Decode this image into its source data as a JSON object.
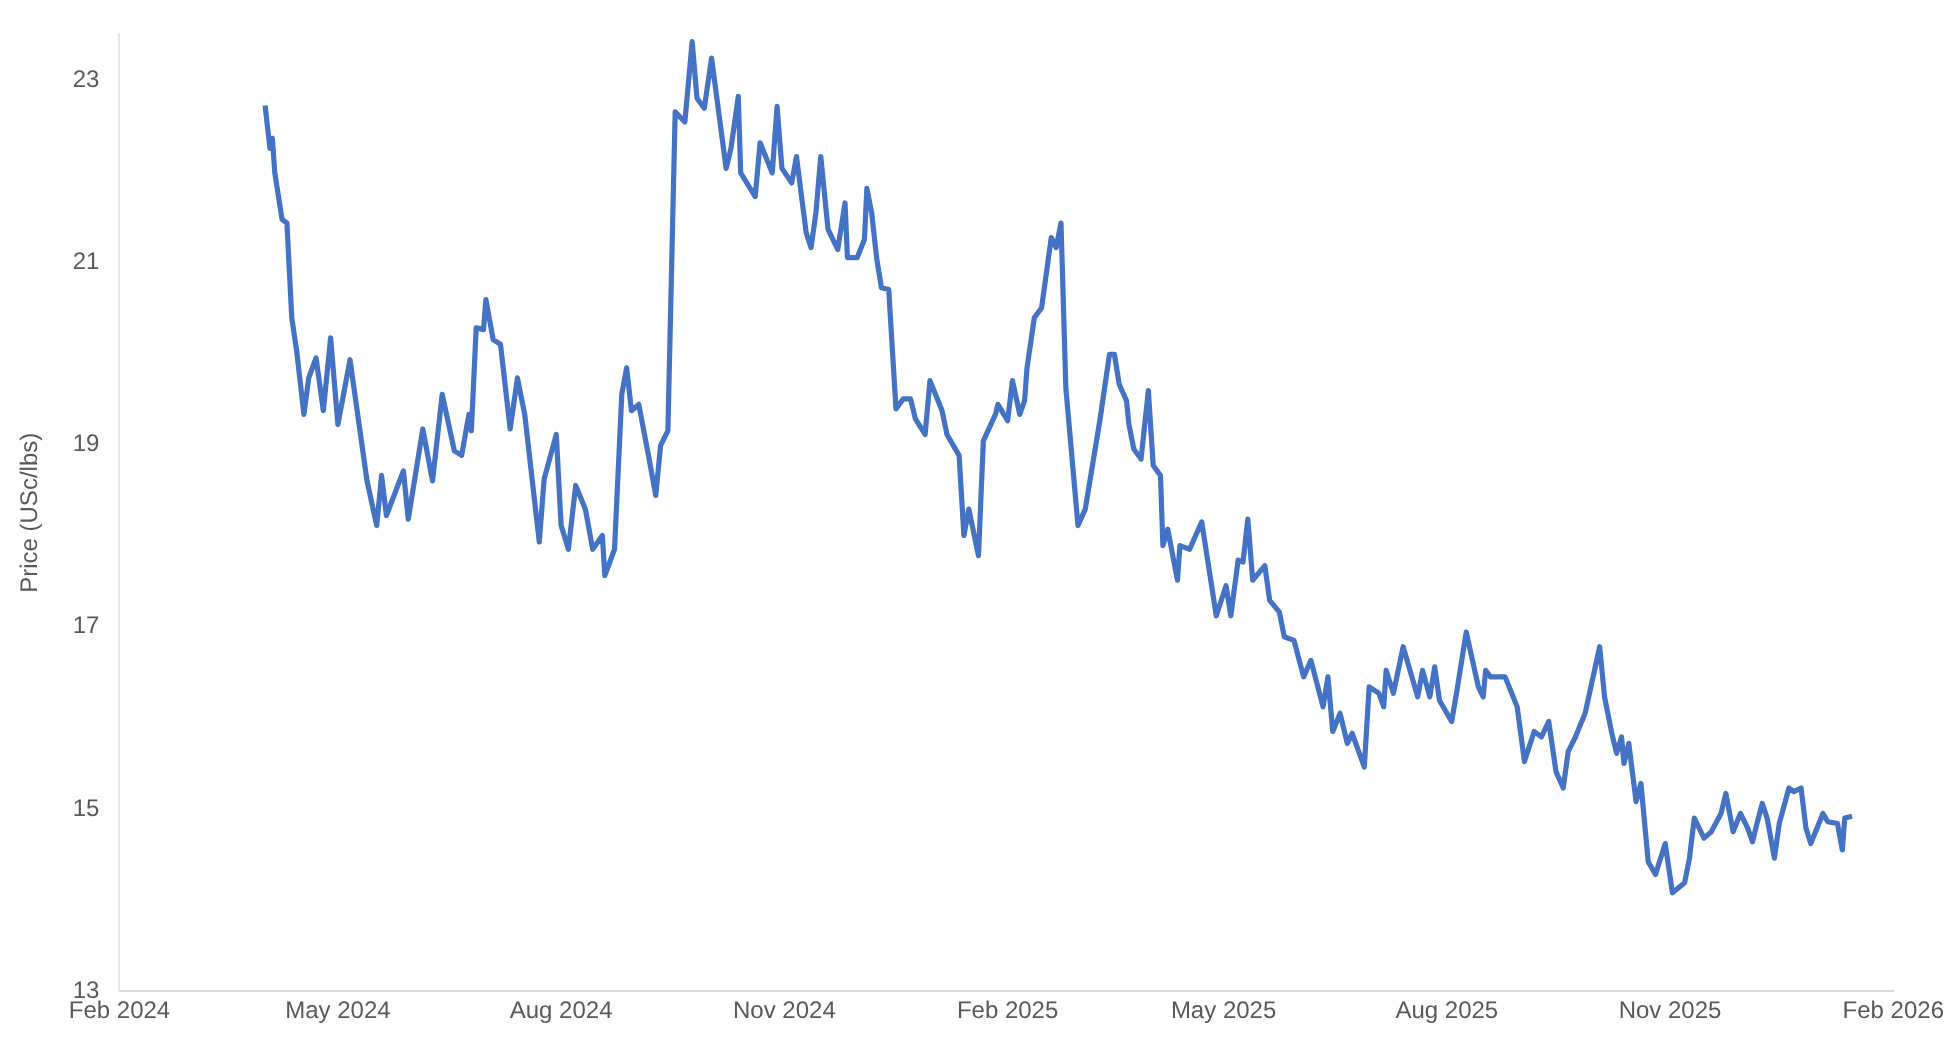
{
  "chart_data": {
    "type": "line",
    "ylabel": "Price (USc/lbs)",
    "color": "#4472c4",
    "grid": false,
    "legend": false,
    "marker": "none",
    "line_style": "solid",
    "xlim": [
      "2024-02-01",
      "2026-02-01"
    ],
    "xticks": [
      {
        "value": "2024-02-01",
        "label": "Feb 2024"
      },
      {
        "value": "2024-05-01",
        "label": "May 2024"
      },
      {
        "value": "2024-08-01",
        "label": "Aug 2024"
      },
      {
        "value": "2024-11-01",
        "label": "Nov 2024"
      },
      {
        "value": "2025-02-01",
        "label": "Feb 2025"
      },
      {
        "value": "2025-05-01",
        "label": "May 2025"
      },
      {
        "value": "2025-08-01",
        "label": "Aug 2025"
      },
      {
        "value": "2025-11-01",
        "label": "Nov 2025"
      },
      {
        "value": "2026-02-01",
        "label": "Feb 2026"
      }
    ],
    "ylim": [
      13,
      23.5
    ],
    "yticks": [
      13,
      15,
      17,
      19,
      21,
      23
    ],
    "x": [
      "2024-04-01",
      "2024-04-03",
      "2024-04-04",
      "2024-04-05",
      "2024-04-08",
      "2024-04-10",
      "2024-04-12",
      "2024-04-14",
      "2024-04-17",
      "2024-04-19",
      "2024-04-22",
      "2024-04-25",
      "2024-04-28",
      "2024-05-01",
      "2024-05-06",
      "2024-05-08",
      "2024-05-13",
      "2024-05-17",
      "2024-05-19",
      "2024-05-21",
      "2024-05-28",
      "2024-05-30",
      "2024-06-05",
      "2024-06-09",
      "2024-06-13",
      "2024-06-18",
      "2024-06-21",
      "2024-06-24",
      "2024-06-25",
      "2024-06-27",
      "2024-06-30",
      "2024-07-01",
      "2024-07-04",
      "2024-07-07",
      "2024-07-11",
      "2024-07-14",
      "2024-07-17",
      "2024-07-23",
      "2024-07-25",
      "2024-07-30",
      "2024-08-01",
      "2024-08-04",
      "2024-08-07",
      "2024-08-11",
      "2024-08-14",
      "2024-08-18",
      "2024-08-19",
      "2024-08-23",
      "2024-08-26",
      "2024-08-28",
      "2024-08-30",
      "2024-09-02",
      "2024-09-06",
      "2024-09-09",
      "2024-09-11",
      "2024-09-14",
      "2024-09-17",
      "2024-09-21",
      "2024-09-24",
      "2024-09-26",
      "2024-09-29",
      "2024-10-02",
      "2024-10-08",
      "2024-10-10",
      "2024-10-13",
      "2024-10-14",
      "2024-10-20",
      "2024-10-22",
      "2024-10-27",
      "2024-10-29",
      "2024-10-31",
      "2024-11-04",
      "2024-11-06",
      "2024-11-10",
      "2024-11-12",
      "2024-11-14",
      "2024-11-16",
      "2024-11-19",
      "2024-11-23",
      "2024-11-26",
      "2024-11-27",
      "2024-12-01",
      "2024-12-04",
      "2024-12-05",
      "2024-12-07",
      "2024-12-09",
      "2024-12-11",
      "2024-12-14",
      "2024-12-17",
      "2024-12-20",
      "2024-12-23",
      "2024-12-25",
      "2024-12-29",
      "2024-12-31",
      "2025-01-05",
      "2025-01-07",
      "2025-01-12",
      "2025-01-14",
      "2025-01-16",
      "2025-01-20",
      "2025-01-22",
      "2025-01-27",
      "2025-01-28",
      "2025-02-01",
      "2025-02-03",
      "2025-02-06",
      "2025-02-08",
      "2025-02-09",
      "2025-02-12",
      "2025-02-15",
      "2025-02-19",
      "2025-02-21",
      "2025-02-23",
      "2025-02-25",
      "2025-03-02",
      "2025-03-05",
      "2025-03-11",
      "2025-03-15",
      "2025-03-17",
      "2025-03-19",
      "2025-03-22",
      "2025-03-23",
      "2025-03-25",
      "2025-03-28",
      "2025-03-31",
      "2025-04-02",
      "2025-04-05",
      "2025-04-06",
      "2025-04-08",
      "2025-04-12",
      "2025-04-13",
      "2025-04-17",
      "2025-04-22",
      "2025-04-28",
      "2025-05-02",
      "2025-05-04",
      "2025-05-07",
      "2025-05-09",
      "2025-05-11",
      "2025-05-13",
      "2025-05-18",
      "2025-05-20",
      "2025-05-24",
      "2025-05-26",
      "2025-05-30",
      "2025-06-03",
      "2025-06-06",
      "2025-06-11",
      "2025-06-13",
      "2025-06-15",
      "2025-06-18",
      "2025-06-21",
      "2025-06-23",
      "2025-06-28",
      "2025-06-30",
      "2025-07-04",
      "2025-07-06",
      "2025-07-07",
      "2025-07-10",
      "2025-07-14",
      "2025-07-20",
      "2025-07-22",
      "2025-07-25",
      "2025-07-27",
      "2025-07-29",
      "2025-08-03",
      "2025-08-05",
      "2025-08-09",
      "2025-08-14",
      "2025-08-16",
      "2025-08-17",
      "2025-08-19",
      "2025-08-25",
      "2025-08-30",
      "2025-09-02",
      "2025-09-06",
      "2025-09-09",
      "2025-09-12",
      "2025-09-15",
      "2025-09-18",
      "2025-09-20",
      "2025-09-23",
      "2025-09-27",
      "2025-10-03",
      "2025-10-05",
      "2025-10-08",
      "2025-10-10",
      "2025-10-12",
      "2025-10-13",
      "2025-10-15",
      "2025-10-18",
      "2025-10-20",
      "2025-10-23",
      "2025-10-26",
      "2025-10-30",
      "2025-11-02",
      "2025-11-07",
      "2025-11-09",
      "2025-11-11",
      "2025-11-15",
      "2025-11-18",
      "2025-11-22",
      "2025-11-24",
      "2025-11-27",
      "2025-11-30",
      "2025-12-03",
      "2025-12-05",
      "2025-12-07",
      "2025-12-09",
      "2025-12-11",
      "2025-12-14",
      "2025-12-16",
      "2025-12-20",
      "2025-12-22",
      "2025-12-25",
      "2025-12-27",
      "2025-12-29",
      "2026-01-03",
      "2026-01-05",
      "2026-01-09",
      "2026-01-11",
      "2026-01-12",
      "2026-01-15"
    ],
    "values": [
      22.72,
      22.25,
      22.36,
      21.98,
      21.47,
      21.43,
      20.39,
      20.03,
      19.33,
      19.73,
      19.95,
      19.37,
      20.17,
      19.22,
      19.93,
      19.55,
      18.6,
      18.11,
      18.66,
      18.22,
      18.71,
      18.18,
      19.17,
      18.6,
      19.55,
      18.93,
      18.88,
      19.33,
      19.15,
      20.28,
      20.26,
      20.59,
      20.15,
      20.1,
      19.17,
      19.73,
      19.33,
      17.93,
      18.62,
      19.11,
      18.11,
      17.85,
      18.55,
      18.29,
      17.85,
      18.0,
      17.56,
      17.85,
      19.55,
      19.84,
      19.37,
      19.44,
      18.88,
      18.44,
      18.99,
      19.15,
      22.65,
      22.54,
      23.42,
      22.8,
      22.69,
      23.24,
      22.03,
      22.25,
      22.82,
      21.98,
      21.72,
      22.31,
      21.98,
      22.71,
      22.03,
      21.87,
      22.16,
      21.32,
      21.16,
      21.54,
      22.16,
      21.36,
      21.14,
      21.65,
      21.05,
      21.05,
      21.25,
      21.81,
      21.54,
      21.05,
      20.72,
      20.7,
      19.39,
      19.5,
      19.5,
      19.28,
      19.11,
      19.7,
      19.37,
      19.11,
      18.88,
      18.0,
      18.29,
      17.78,
      19.04,
      19.33,
      19.44,
      19.26,
      19.7,
      19.33,
      19.48,
      19.84,
      20.39,
      20.5,
      21.27,
      21.16,
      21.43,
      19.62,
      18.11,
      18.29,
      19.26,
      19.99,
      19.99,
      19.66,
      19.48,
      19.22,
      18.95,
      18.84,
      19.59,
      18.77,
      18.66,
      17.89,
      18.07,
      17.51,
      17.89,
      17.85,
      18.15,
      17.12,
      17.45,
      17.12,
      17.73,
      17.71,
      18.18,
      17.51,
      17.67,
      17.29,
      17.16,
      16.89,
      16.85,
      16.45,
      16.63,
      16.12,
      16.45,
      15.85,
      16.05,
      15.72,
      15.83,
      15.46,
      16.34,
      16.27,
      16.12,
      16.52,
      16.27,
      16.78,
      16.23,
      16.52,
      16.23,
      16.56,
      16.19,
      15.96,
      16.27,
      16.94,
      16.34,
      16.23,
      16.52,
      16.45,
      16.45,
      16.12,
      15.52,
      15.85,
      15.79,
      15.96,
      15.41,
      15.23,
      15.63,
      15.79,
      16.05,
      16.78,
      16.23,
      15.83,
      15.61,
      15.79,
      15.5,
      15.72,
      15.08,
      15.28,
      14.42,
      14.28,
      14.62,
      14.08,
      14.19,
      14.46,
      14.9,
      14.68,
      14.75,
      14.95,
      15.17,
      14.75,
      14.95,
      14.79,
      14.64,
      14.86,
      15.06,
      14.9,
      14.46,
      14.84,
      15.23,
      15.19,
      15.23,
      14.79,
      14.62,
      14.95,
      14.86,
      14.84,
      14.55,
      14.9,
      14.92
    ]
  }
}
